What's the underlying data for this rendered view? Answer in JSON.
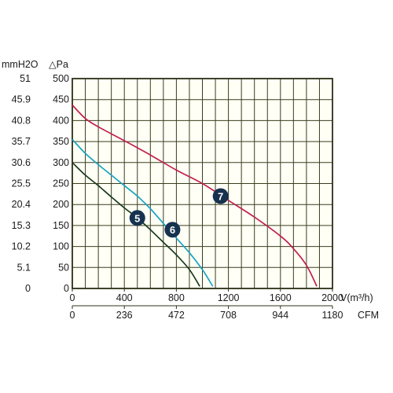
{
  "chart_data": {
    "type": "line",
    "x_axis_primary": {
      "label": "V(m³/h)",
      "ticks": [
        "0",
        "400",
        "800",
        "1200",
        "1600",
        "2000"
      ],
      "range": [
        0,
        2000
      ]
    },
    "x_axis_secondary": {
      "label": "CFM",
      "ticks": [
        "0",
        "236",
        "472",
        "708",
        "944",
        "1180"
      ]
    },
    "y_axis_primary": {
      "label": "△Pa",
      "ticks": [
        "0",
        "50",
        "100",
        "150",
        "200",
        "250",
        "300",
        "350",
        "400",
        "450",
        "500"
      ],
      "range": [
        0,
        500
      ]
    },
    "y_axis_secondary": {
      "label": "mmH2O",
      "ticks": [
        "0",
        "5.1",
        "10.2",
        "15.3",
        "20.4",
        "25.5",
        "30.6",
        "35.7",
        "40.8",
        "45.9",
        "51"
      ]
    },
    "grid": true,
    "series": [
      {
        "marker": "5",
        "color": "#1a3a1e",
        "marker_at": [
          500,
          168
        ],
        "points": [
          [
            0,
            300
          ],
          [
            100,
            270
          ],
          [
            200,
            245
          ],
          [
            300,
            218
          ],
          [
            400,
            192
          ],
          [
            500,
            168
          ],
          [
            600,
            140
          ],
          [
            700,
            110
          ],
          [
            800,
            80
          ],
          [
            900,
            45
          ],
          [
            980,
            5
          ]
        ]
      },
      {
        "marker": "6",
        "color": "#19a3c2",
        "marker_at": [
          770,
          140
        ],
        "points": [
          [
            0,
            355
          ],
          [
            100,
            322
          ],
          [
            200,
            295
          ],
          [
            300,
            270
          ],
          [
            400,
            245
          ],
          [
            500,
            220
          ],
          [
            600,
            190
          ],
          [
            700,
            155
          ],
          [
            800,
            120
          ],
          [
            900,
            85
          ],
          [
            1000,
            45
          ],
          [
            1080,
            5
          ]
        ]
      },
      {
        "marker": "7",
        "color": "#c21f4e",
        "marker_at": [
          1140,
          220
        ],
        "points": [
          [
            0,
            437
          ],
          [
            100,
            405
          ],
          [
            200,
            385
          ],
          [
            400,
            352
          ],
          [
            600,
            318
          ],
          [
            800,
            282
          ],
          [
            1000,
            250
          ],
          [
            1200,
            210
          ],
          [
            1400,
            170
          ],
          [
            1600,
            125
          ],
          [
            1700,
            95
          ],
          [
            1800,
            55
          ],
          [
            1880,
            5
          ]
        ]
      }
    ]
  }
}
